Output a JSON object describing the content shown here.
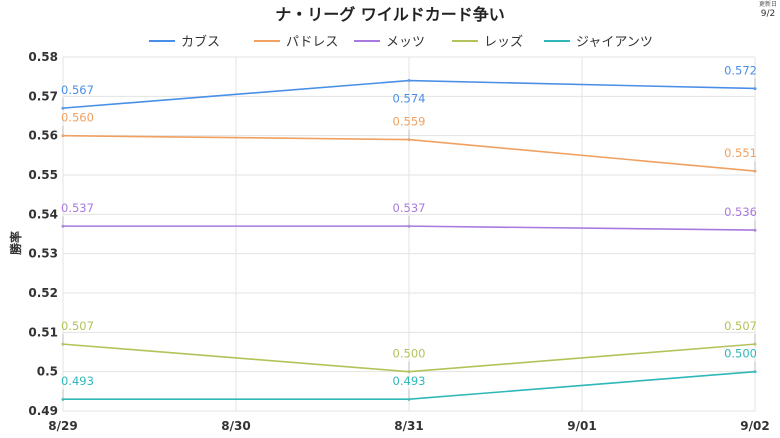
{
  "chart_data": {
    "type": "line",
    "title": "ナ・リーグ ワイルドカード争い",
    "ylabel": "勝率",
    "xlabel": "",
    "categories": [
      "8/29",
      "8/30",
      "8/31",
      "9/01",
      "9/02"
    ],
    "yticks": [
      "0.49",
      "0.5",
      "0.51",
      "0.52",
      "0.53",
      "0.54",
      "0.55",
      "0.56",
      "0.57",
      "0.58"
    ],
    "ylim": [
      0.49,
      0.58
    ],
    "grid": true,
    "legend": "top",
    "updated_label": "更新日",
    "updated_date": "9/2",
    "series": [
      {
        "name": "カブス",
        "color": "#4a8fe7",
        "points": [
          {
            "x": "8/29",
            "y": 0.567,
            "label": "0.567"
          },
          {
            "x": "8/31",
            "y": 0.574,
            "label": "0.574"
          },
          {
            "x": "9/02",
            "y": 0.572,
            "label": "0.572"
          }
        ]
      },
      {
        "name": "パドレス",
        "color": "#f0a060",
        "points": [
          {
            "x": "8/29",
            "y": 0.56,
            "label": "0.560"
          },
          {
            "x": "8/31",
            "y": 0.559,
            "label": "0.559"
          },
          {
            "x": "9/02",
            "y": 0.551,
            "label": "0.551"
          }
        ]
      },
      {
        "name": "メッツ",
        "color": "#a87ae0",
        "points": [
          {
            "x": "8/29",
            "y": 0.537,
            "label": "0.537"
          },
          {
            "x": "8/31",
            "y": 0.537,
            "label": "0.537"
          },
          {
            "x": "9/02",
            "y": 0.536,
            "label": "0.536"
          }
        ]
      },
      {
        "name": "レッズ",
        "color": "#b5c25a",
        "points": [
          {
            "x": "8/29",
            "y": 0.507,
            "label": "0.507"
          },
          {
            "x": "8/31",
            "y": 0.5,
            "label": "0.500"
          },
          {
            "x": "9/02",
            "y": 0.507,
            "label": "0.507"
          }
        ]
      },
      {
        "name": "ジャイアンツ",
        "color": "#30b8b8",
        "points": [
          {
            "x": "8/29",
            "y": 0.493,
            "label": "0.493"
          },
          {
            "x": "8/31",
            "y": 0.493,
            "label": "0.493"
          },
          {
            "x": "9/02",
            "y": 0.5,
            "label": "0.500"
          }
        ]
      }
    ]
  }
}
